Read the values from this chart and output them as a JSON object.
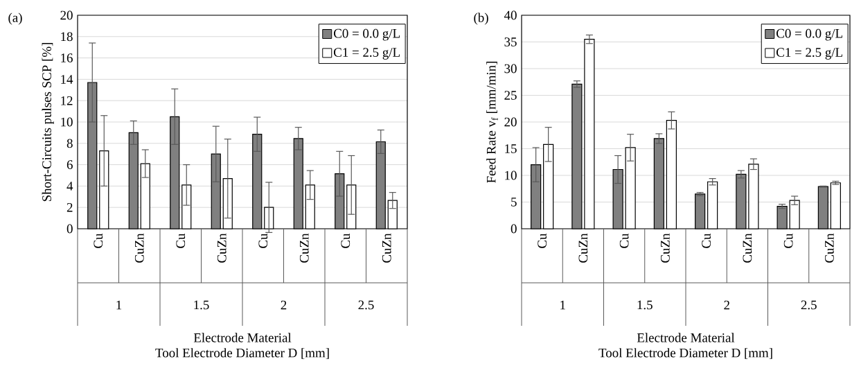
{
  "chart_data": [
    {
      "type": "bar",
      "title": "(a)",
      "ylabel": "Short-Circuits pulses SCP [%]",
      "xlabel": "Electrode Material",
      "categories": [
        "Cu",
        "CuZn",
        "Cu",
        "CuZn",
        "Cu",
        "CuZn",
        "Cu",
        "CuZn"
      ],
      "series": [
        {
          "name": "C0 = 0.0 g/L",
          "color": "#808080",
          "values": [
            13.7,
            9.0,
            10.5,
            7.0,
            8.85,
            8.45,
            5.15,
            8.15
          ],
          "errors": [
            3.7,
            1.1,
            2.6,
            2.6,
            1.6,
            1.05,
            2.1,
            1.1
          ]
        },
        {
          "name": "C1 = 2.5 g/L",
          "color": "#ffffff",
          "values": [
            7.3,
            6.1,
            4.1,
            4.7,
            2.0,
            4.1,
            4.1,
            2.65
          ],
          "errors": [
            3.3,
            1.3,
            1.9,
            3.7,
            2.35,
            1.35,
            2.75,
            0.75
          ]
        }
      ],
      "ylim": [
        0,
        20
      ],
      "yticks": [
        0,
        2,
        4,
        6,
        8,
        10,
        12,
        14,
        16,
        18,
        20
      ],
      "grid": "y",
      "legend": "top right",
      "annotations": [
        "1",
        "1.5",
        "2",
        "2.5",
        "Tool Electrode Diameter D [mm]"
      ]
    },
    {
      "type": "bar",
      "title": "(b)",
      "ylabel": "Feed Rate v$_{f}$ [mm/min]",
      "xlabel": "Electrode Material",
      "categories": [
        "Cu",
        "CuZn",
        "Cu",
        "CuZn",
        "Cu",
        "CuZn",
        "Cu",
        "CuZn"
      ],
      "series": [
        {
          "name": "C0 = 0.0 g/L",
          "color": "#808080",
          "values": [
            12.0,
            27.1,
            11.1,
            16.9,
            6.5,
            10.2,
            4.2,
            7.9
          ],
          "errors": [
            3.2,
            0.6,
            2.6,
            0.9,
            0.3,
            0.7,
            0.4,
            0.1
          ]
        },
        {
          "name": "C1 = 2.5 g/L",
          "color": "#ffffff",
          "values": [
            15.8,
            35.5,
            15.2,
            20.3,
            8.8,
            12.1,
            5.3,
            8.6
          ],
          "errors": [
            3.2,
            0.8,
            2.5,
            1.6,
            0.6,
            1.0,
            0.8,
            0.3
          ]
        }
      ],
      "ylim": [
        0,
        40
      ],
      "yticks": [
        0,
        5,
        10,
        15,
        20,
        25,
        30,
        35,
        40
      ],
      "grid": "y",
      "legend": "top right",
      "annotations": [
        "1",
        "1.5",
        "2",
        "2.5",
        "Tool Electrode Diameter D [mm]"
      ]
    }
  ]
}
